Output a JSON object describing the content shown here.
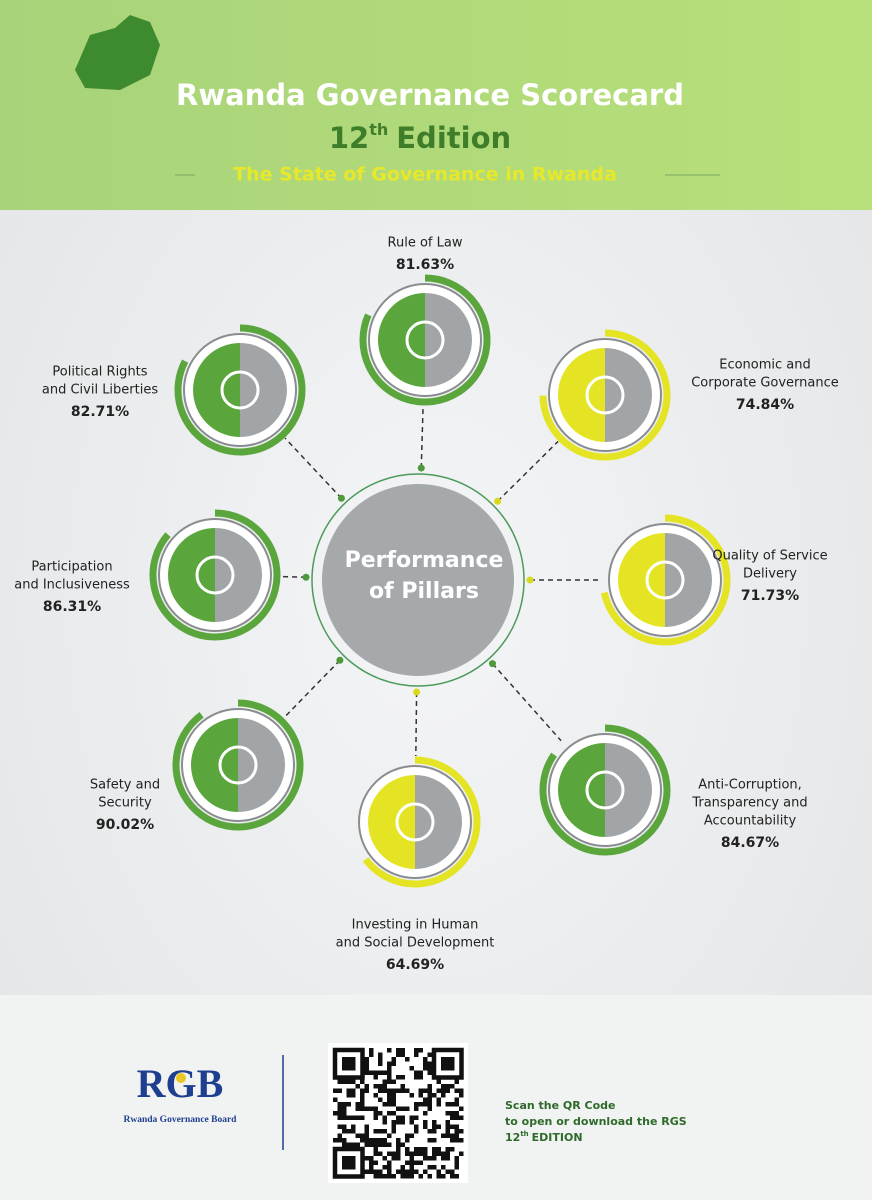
{
  "header": {
    "title": "Rwanda Governance Scorecard",
    "edition_number": "12",
    "edition_suffix": "th",
    "edition_word": "Edition",
    "subtitle": "The State of Governance in Rwanda"
  },
  "center": {
    "lines": [
      "Performance",
      "of Pillars"
    ]
  },
  "pillars": [
    {
      "name_lines": [
        "Rule of Law"
      ],
      "value": 81.63,
      "value_label": "81.63%",
      "color": "#5aa63c"
    },
    {
      "name_lines": [
        "Economic and",
        "Corporate Governance"
      ],
      "value": 74.84,
      "value_label": "74.84%",
      "color": "#e4e424"
    },
    {
      "name_lines": [
        "Quality of Service",
        "Delivery"
      ],
      "value": 71.73,
      "value_label": "71.73%",
      "color": "#e4e424"
    },
    {
      "name_lines": [
        "Anti-Corruption,",
        "Transparency and",
        "Accountability"
      ],
      "value": 84.67,
      "value_label": "84.67%",
      "color": "#5aa63c"
    },
    {
      "name_lines": [
        "Investing in Human",
        "and Social Development"
      ],
      "value": 64.69,
      "value_label": "64.69%",
      "color": "#e4e424"
    },
    {
      "name_lines": [
        "Safety and",
        "Security"
      ],
      "value": 90.02,
      "value_label": "90.02%",
      "color": "#5aa63c"
    },
    {
      "name_lines": [
        "Participation",
        "and Inclusiveness"
      ],
      "value": 86.31,
      "value_label": "86.31%",
      "color": "#5aa63c"
    },
    {
      "name_lines": [
        "Political Rights",
        "and Civil Liberties"
      ],
      "value": 82.71,
      "value_label": "82.71%",
      "color": "#5aa63c"
    }
  ],
  "footer": {
    "logo": "RGB",
    "logo_caption": "Rwanda Governance Board",
    "qr_lines": [
      "Scan the QR Code",
      "to open or download the RGS"
    ],
    "qr_edition_number": "12",
    "qr_edition_suffix": "th",
    "qr_edition_word": "EDITION"
  }
}
